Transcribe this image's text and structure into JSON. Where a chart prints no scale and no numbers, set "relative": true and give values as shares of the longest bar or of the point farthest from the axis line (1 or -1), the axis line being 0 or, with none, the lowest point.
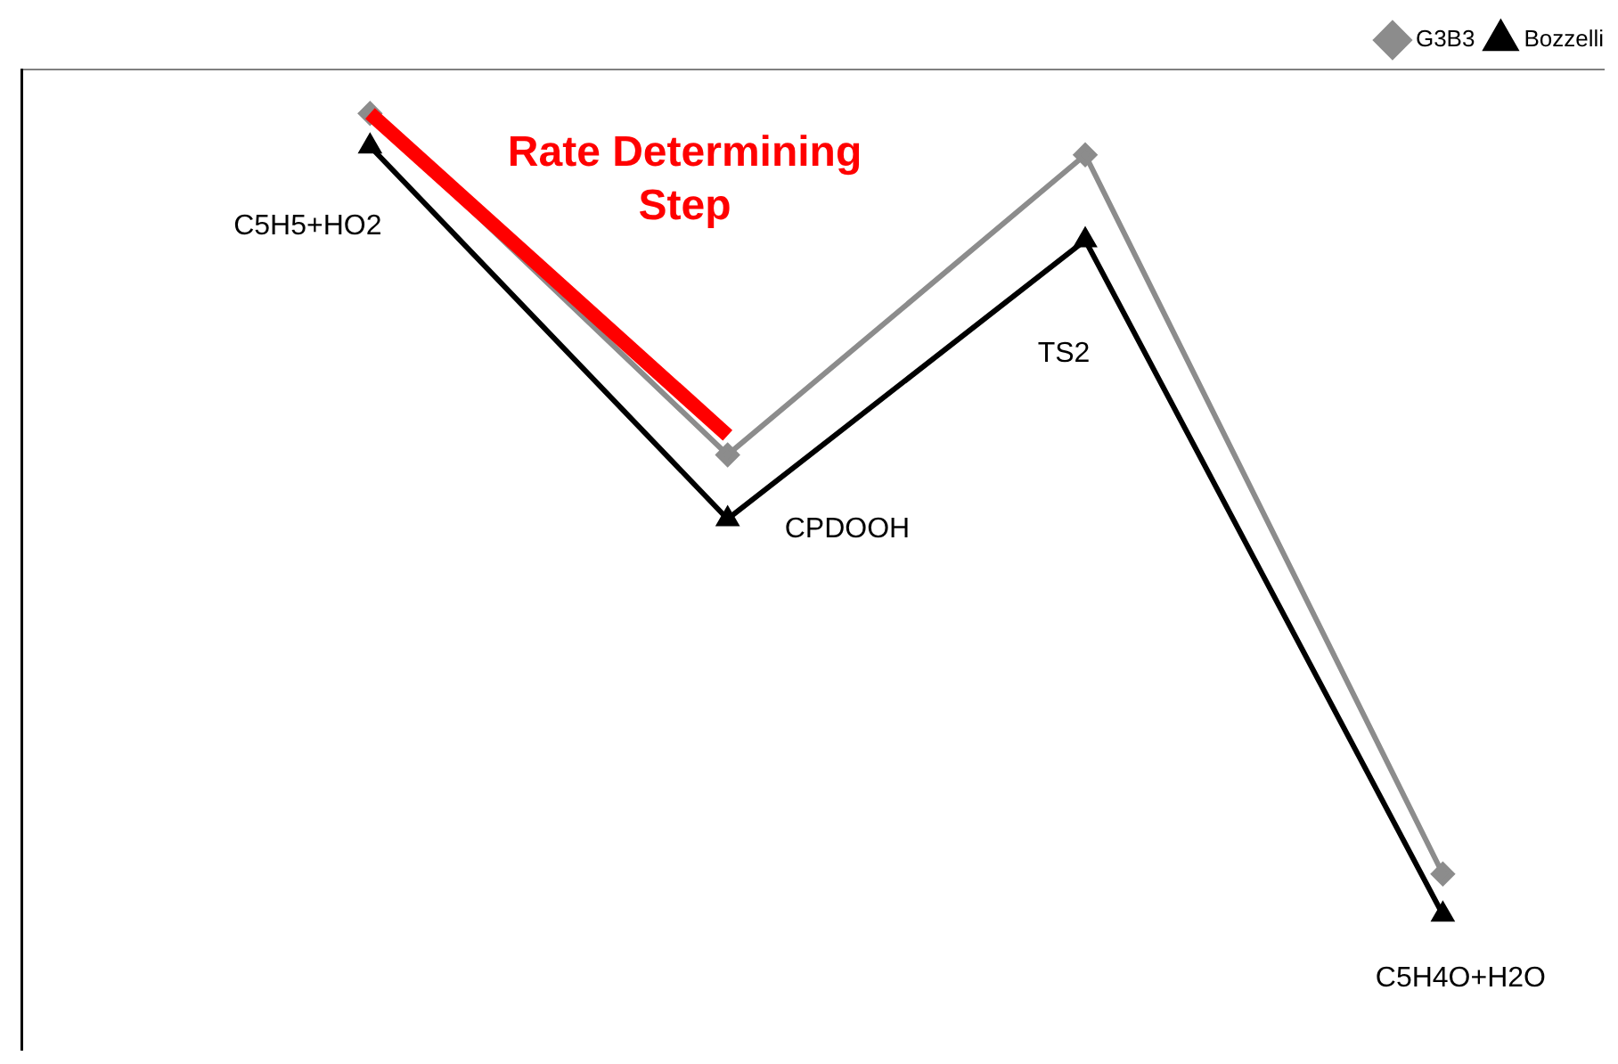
{
  "chart_data": {
    "type": "line",
    "relative": true,
    "categories": [
      "C5H5+HO2",
      "CPDOOH",
      "TS2",
      "C5H4O+H2O"
    ],
    "series": [
      {
        "name": "G3B3",
        "color": "#8c8c8c",
        "marker": "diamond",
        "values": [
          -0.052,
          -0.456,
          -0.101,
          -0.952
        ]
      },
      {
        "name": "Bozzelli",
        "color": "#000000",
        "marker": "triangle",
        "values": [
          -0.091,
          -0.532,
          -0.202,
          -1
        ]
      },
      {
        "color": "#ff0000",
        "marker": "none",
        "values": [
          -0.052,
          -0.433,
          null,
          null
        ]
      }
    ],
    "annotations": [
      "Rate Determining Step"
    ],
    "legend": "top right",
    "grid": false
  }
}
